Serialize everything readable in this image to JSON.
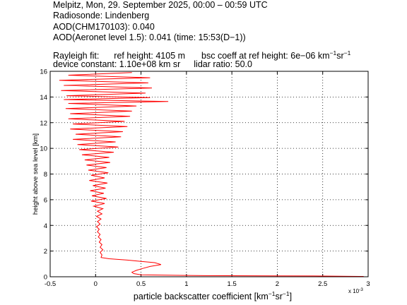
{
  "header": {
    "line1": "Melpitz, Mon, 29. September 2025, 00:00 – 00:59 UTC",
    "line2": "Radiosonde: Lindenberg",
    "line3": "AOD(CHM170103): 0.040",
    "line4": "AOD(Aeronet level 1.5): 0.041   (time: 15:53(D−1))",
    "rayleigh_label": "Rayleigh fit:",
    "ref_height": "ref height: 4105 m",
    "bsc_coeff_prefix": "bsc coeff at ref height: 6e−06 km",
    "bsc_coeff_sup1": "−1",
    "bsc_coeff_mid": "sr",
    "bsc_coeff_sup2": "−1",
    "device_constant": "device constant: 1.10e+08 km sr",
    "lidar_ratio": "lidar ratio: 50.0"
  },
  "chart_data": {
    "type": "line",
    "xlabel_main": "particle backscatter coefficient [km",
    "xlabel_sup1": "−1",
    "xlabel_mid": "sr",
    "xlabel_sup2": "−1",
    "xlabel_end": "]",
    "ylabel": "height above sea level [km]",
    "x_multiplier_label": "x 10",
    "x_multiplier_exp": "-3",
    "xlim": [
      -0.5,
      3
    ],
    "ylim": [
      0,
      16
    ],
    "xticks": [
      -0.5,
      0,
      0.5,
      1,
      1.5,
      2,
      2.5,
      3
    ],
    "xtick_labels": [
      "-0.5",
      "0",
      "0.5",
      "1",
      "1.5",
      "2",
      "2.5",
      "3"
    ],
    "yticks": [
      0,
      2,
      4,
      6,
      8,
      10,
      12,
      14,
      16
    ],
    "ytick_labels": [
      "0",
      "2",
      "4",
      "6",
      "8",
      "10",
      "12",
      "14",
      "16"
    ],
    "grid": true,
    "series": [
      {
        "color": "#ff0000",
        "points": [
          [
            2.95,
            0.03
          ],
          [
            2.4,
            0.06
          ],
          [
            1.2,
            0.09
          ],
          [
            0.5,
            0.15
          ],
          [
            0.42,
            0.25
          ],
          [
            0.4,
            0.35
          ],
          [
            0.45,
            0.5
          ],
          [
            0.52,
            0.65
          ],
          [
            0.6,
            0.8
          ],
          [
            0.72,
            0.95
          ],
          [
            0.65,
            1.1
          ],
          [
            0.5,
            1.2
          ],
          [
            0.35,
            1.3
          ],
          [
            0.15,
            1.4
          ],
          [
            0.06,
            1.5
          ],
          [
            0.07,
            1.7
          ],
          [
            0.05,
            1.9
          ],
          [
            0.08,
            2.1
          ],
          [
            0.05,
            2.3
          ],
          [
            0.07,
            2.5
          ],
          [
            0.04,
            2.7
          ],
          [
            0.06,
            2.9
          ],
          [
            0.03,
            3.1
          ],
          [
            0.05,
            3.3
          ],
          [
            0.02,
            3.5
          ],
          [
            0.04,
            3.7
          ],
          [
            0.01,
            3.9
          ],
          [
            0.05,
            4.1
          ],
          [
            0.02,
            4.3
          ],
          [
            0.06,
            4.5
          ],
          [
            0.01,
            4.7
          ],
          [
            0.07,
            4.9
          ],
          [
            0.02,
            5.1
          ],
          [
            0.08,
            5.3
          ],
          [
            -0.02,
            5.5
          ],
          [
            0.1,
            5.7
          ],
          [
            -0.05,
            5.9
          ],
          [
            0.12,
            6.1
          ],
          [
            -0.04,
            6.3
          ],
          [
            0.09,
            6.5
          ],
          [
            -0.06,
            6.7
          ],
          [
            0.11,
            6.9
          ],
          [
            -0.03,
            7.1
          ],
          [
            0.13,
            7.3
          ],
          [
            -0.07,
            7.5
          ],
          [
            0.1,
            7.7
          ],
          [
            -0.05,
            7.9
          ],
          [
            0.14,
            8.1
          ],
          [
            -0.08,
            8.3
          ],
          [
            0.12,
            8.5
          ],
          [
            -0.1,
            8.7
          ],
          [
            0.16,
            8.9
          ],
          [
            -0.12,
            9.1
          ],
          [
            0.15,
            9.3
          ],
          [
            -0.15,
            9.5
          ],
          [
            0.2,
            9.7
          ],
          [
            -0.18,
            9.9
          ],
          [
            0.25,
            10.1
          ],
          [
            -0.2,
            10.3
          ],
          [
            0.22,
            10.5
          ],
          [
            -0.25,
            10.7
          ],
          [
            0.28,
            10.9
          ],
          [
            -0.22,
            11.1
          ],
          [
            0.3,
            11.3
          ],
          [
            -0.28,
            11.5
          ],
          [
            0.35,
            11.7
          ],
          [
            -0.25,
            11.9
          ],
          [
            0.32,
            12.1
          ],
          [
            -0.3,
            12.3
          ],
          [
            0.38,
            12.5
          ],
          [
            -0.28,
            12.7
          ],
          [
            0.4,
            12.9
          ],
          [
            -0.33,
            13.1
          ],
          [
            0.45,
            13.3
          ],
          [
            -0.3,
            13.5
          ],
          [
            0.8,
            13.65
          ],
          [
            -0.35,
            13.8
          ],
          [
            0.6,
            13.95
          ],
          [
            -0.32,
            14.1
          ],
          [
            0.55,
            14.3
          ],
          [
            -0.38,
            14.5
          ],
          [
            0.62,
            14.7
          ],
          [
            -0.35,
            14.9
          ],
          [
            0.58,
            15.1
          ],
          [
            -0.4,
            15.3
          ],
          [
            0.6,
            15.5
          ],
          [
            -0.3,
            15.7
          ],
          [
            0.4,
            15.9
          ]
        ]
      }
    ]
  }
}
